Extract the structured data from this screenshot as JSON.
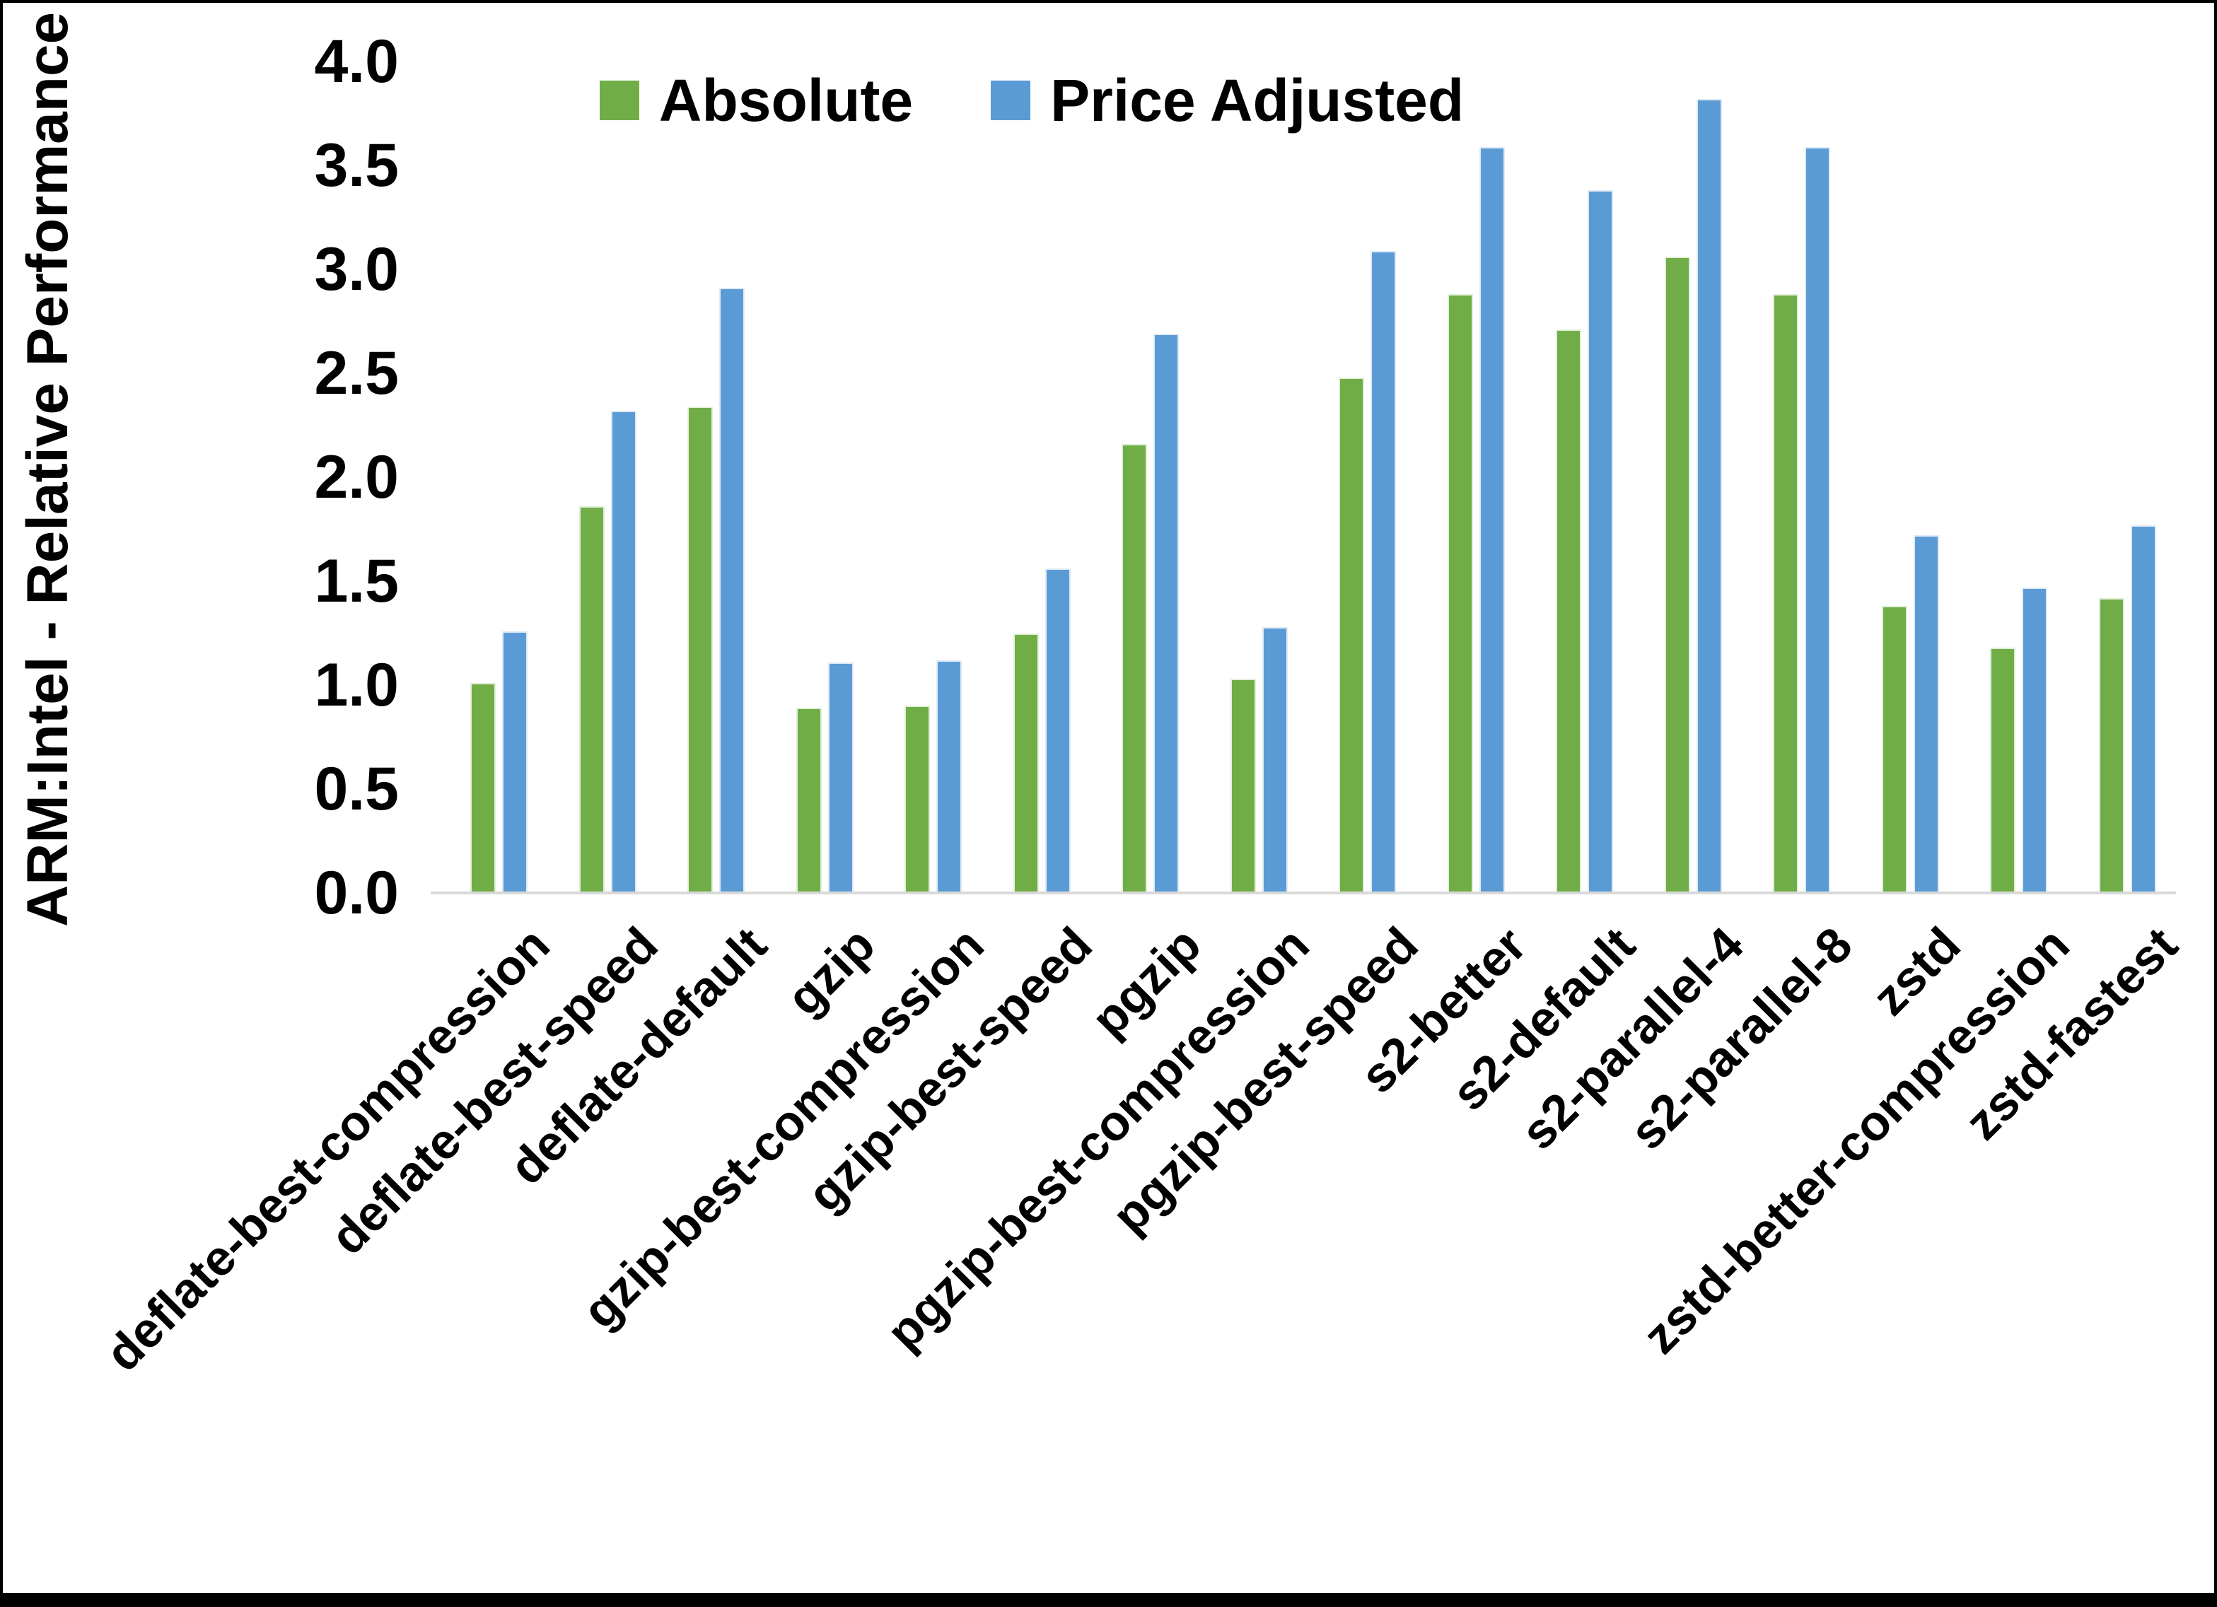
{
  "chart_data": {
    "type": "bar",
    "title": "",
    "xlabel": "",
    "ylabel": "ARM:Intel - Relative Performance",
    "ylim": [
      0.0,
      4.0
    ],
    "ytick_step": 0.5,
    "tick_labels": [
      "0.0",
      "0.5",
      "1.0",
      "1.5",
      "2.0",
      "2.5",
      "3.0",
      "3.5",
      "4.0"
    ],
    "grid": false,
    "legend_position": "top-center",
    "axis_line_color": "#D9D9D9",
    "categories": [
      "deflate-best-compression",
      "deflate-best-speed",
      "deflate-default",
      "gzip",
      "gzip-best-compression",
      "gzip-best-speed",
      "pgzip",
      "pgzip-best-compression",
      "pgzip-best-speed",
      "s2-better",
      "s2-default",
      "s2-parallel-4",
      "s2-parallel-8",
      "zstd",
      "zstd-better-compression",
      "zstd-fastest"
    ],
    "series": [
      {
        "name": "Absolute",
        "color": "#70AD47",
        "values": [
          1.01,
          1.86,
          2.34,
          0.89,
          0.9,
          1.25,
          2.16,
          1.03,
          2.48,
          2.88,
          2.71,
          3.06,
          2.88,
          1.38,
          1.18,
          1.42
        ]
      },
      {
        "name": "Price Adjusted",
        "color": "#5B9BD5",
        "values": [
          1.26,
          2.32,
          2.91,
          1.11,
          1.12,
          1.56,
          2.69,
          1.28,
          3.09,
          3.59,
          3.38,
          3.82,
          3.59,
          1.72,
          1.47,
          1.77
        ]
      }
    ]
  },
  "frame": {
    "border_color": "#000000",
    "background_color": "#FFFFFF"
  }
}
